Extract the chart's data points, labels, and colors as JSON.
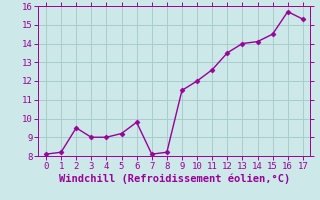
{
  "x": [
    0,
    1,
    2,
    3,
    4,
    5,
    6,
    7,
    8,
    9,
    10,
    11,
    12,
    13,
    14,
    15,
    16,
    17
  ],
  "y": [
    8.1,
    8.2,
    9.5,
    9.0,
    9.0,
    9.2,
    9.8,
    8.1,
    8.2,
    11.5,
    12.0,
    12.6,
    13.5,
    14.0,
    14.1,
    14.5,
    15.7,
    15.3
  ],
  "line_color": "#990099",
  "marker": "D",
  "marker_size": 2.5,
  "line_width": 1.0,
  "bg_color": "#cce8e8",
  "grid_color": "#aacccc",
  "xlabel": "Windchill (Refroidissement éolien,°C)",
  "xlabel_color": "#990099",
  "ylim": [
    8,
    16
  ],
  "xlim": [
    -0.5,
    17.5
  ],
  "yticks": [
    8,
    9,
    10,
    11,
    12,
    13,
    14,
    15,
    16
  ],
  "xticks": [
    0,
    1,
    2,
    3,
    4,
    5,
    6,
    7,
    8,
    9,
    10,
    11,
    12,
    13,
    14,
    15,
    16,
    17
  ],
  "tick_color": "#990099",
  "tick_fontsize": 6.5,
  "xlabel_fontsize": 7.5
}
